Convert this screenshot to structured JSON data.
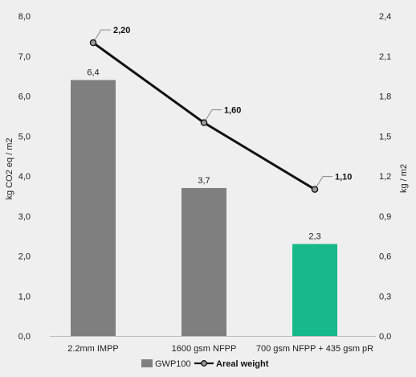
{
  "chart_data": {
    "type": "bar",
    "categories": [
      "2.2mm IMPP",
      "1600 gsm NFPP",
      "700 gsm NFPP + 435 gsm pR"
    ],
    "series": [
      {
        "name": "GWP100",
        "type": "bar",
        "axis": "left",
        "values": [
          6.4,
          3.7,
          2.3
        ],
        "value_labels": [
          "6,4",
          "3,7",
          "2,3"
        ],
        "colors": [
          "#7f7f7f",
          "#7f7f7f",
          "#17b889"
        ]
      },
      {
        "name": "Areal weight",
        "type": "line",
        "axis": "right",
        "values": [
          2.2,
          1.6,
          1.1
        ],
        "value_labels": [
          "2,20",
          "1,60",
          "1,10"
        ],
        "color": "#111111"
      }
    ],
    "ylabel_left": "kg CO2 eq / m2",
    "ylabel_right": "kg / m2",
    "ylim_left": [
      0,
      8
    ],
    "ylim_right": [
      0,
      2.4
    ],
    "yticks_left": [
      "0,0",
      "1,0",
      "2,0",
      "3,0",
      "4,0",
      "5,0",
      "6,0",
      "7,0",
      "8,0"
    ],
    "yticks_right": [
      "0,0",
      "0,3",
      "0,6",
      "0,9",
      "1,2",
      "1,5",
      "1,8",
      "2,1",
      "2,4"
    ],
    "grid": false,
    "legend_position": "bottom-center"
  }
}
